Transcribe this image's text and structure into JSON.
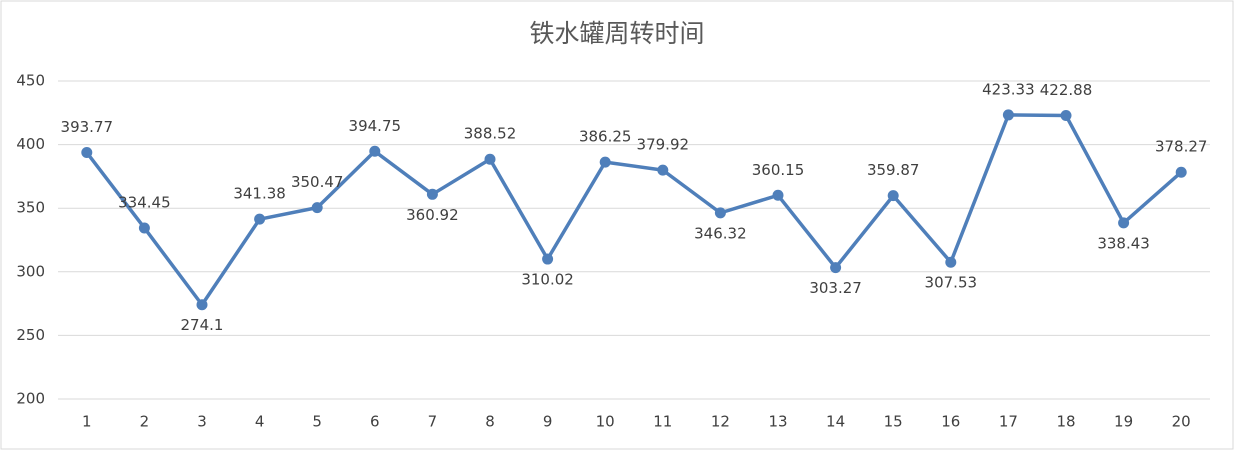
{
  "chart_data": {
    "type": "line",
    "title": "铁水罐周转时间",
    "categories": [
      "1",
      "2",
      "3",
      "4",
      "5",
      "6",
      "7",
      "8",
      "9",
      "10",
      "11",
      "12",
      "13",
      "14",
      "15",
      "16",
      "17",
      "18",
      "19",
      "20"
    ],
    "values": [
      393.77,
      334.45,
      274.1,
      341.38,
      350.47,
      394.75,
      360.92,
      388.52,
      310.02,
      386.25,
      379.92,
      346.32,
      360.15,
      303.27,
      359.87,
      307.53,
      423.33,
      422.88,
      338.43,
      378.27
    ],
    "color": "#4f7fba",
    "ylim": [
      200,
      450
    ],
    "yticks": [
      200,
      250,
      300,
      350,
      400,
      450
    ],
    "grid": true
  }
}
